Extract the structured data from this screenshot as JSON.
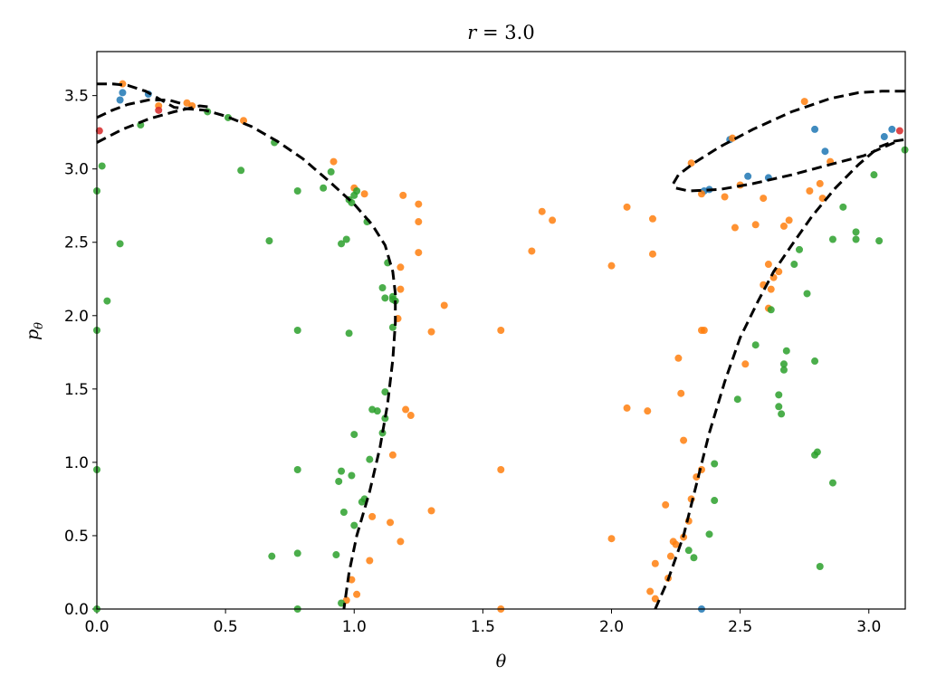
{
  "chart_data": {
    "type": "scatter",
    "title": "r = 3.0",
    "title_var": "r",
    "title_rest": " = 3.0",
    "xlabel": "θ",
    "ylabel": "p",
    "ylabel_sub": "θ",
    "xlim": [
      0,
      3.1416
    ],
    "ylim": [
      0,
      3.8
    ],
    "x_ticks": [
      0.0,
      0.5,
      1.0,
      1.5,
      2.0,
      2.5,
      3.0
    ],
    "x_tick_labels": [
      "0.0",
      "0.5",
      "1.0",
      "1.5",
      "2.0",
      "2.5",
      "3.0"
    ],
    "y_ticks": [
      0.0,
      0.5,
      1.0,
      1.5,
      2.0,
      2.5,
      3.0,
      3.5
    ],
    "y_tick_labels": [
      "0.0",
      "0.5",
      "1.0",
      "1.5",
      "2.0",
      "2.5",
      "3.0",
      "3.5"
    ],
    "grid": false,
    "series": [
      {
        "color": "#1f77b4",
        "points": [
          [
            0.09,
            3.47
          ],
          [
            0.1,
            3.52
          ],
          [
            0.2,
            3.51
          ],
          [
            2.36,
            2.85
          ],
          [
            2.38,
            2.86
          ],
          [
            2.46,
            3.2
          ],
          [
            2.53,
            2.95
          ],
          [
            2.61,
            2.94
          ],
          [
            2.79,
            3.27
          ],
          [
            2.83,
            3.12
          ],
          [
            3.06,
            3.22
          ],
          [
            3.09,
            3.27
          ],
          [
            2.35,
            0.0
          ]
        ]
      },
      {
        "color": "#ff7f0e",
        "points": [
          [
            0.1,
            3.58
          ],
          [
            0.24,
            3.43
          ],
          [
            0.35,
            3.45
          ],
          [
            0.37,
            3.43
          ],
          [
            0.57,
            3.33
          ],
          [
            0.92,
            3.05
          ],
          [
            1.0,
            2.87
          ],
          [
            1.04,
            2.83
          ],
          [
            1.19,
            2.82
          ],
          [
            1.25,
            2.76
          ],
          [
            1.25,
            2.64
          ],
          [
            1.25,
            2.43
          ],
          [
            1.18,
            2.33
          ],
          [
            1.18,
            2.18
          ],
          [
            1.17,
            1.98
          ],
          [
            1.35,
            2.07
          ],
          [
            1.3,
            1.89
          ],
          [
            1.2,
            1.36
          ],
          [
            1.22,
            1.32
          ],
          [
            1.15,
            1.05
          ],
          [
            1.14,
            0.59
          ],
          [
            1.18,
            0.46
          ],
          [
            1.3,
            0.67
          ],
          [
            1.07,
            0.63
          ],
          [
            1.06,
            0.33
          ],
          [
            0.99,
            0.2
          ],
          [
            1.01,
            0.1
          ],
          [
            0.97,
            0.06
          ],
          [
            1.57,
            1.9
          ],
          [
            1.57,
            0.95
          ],
          [
            1.57,
            0.0
          ],
          [
            1.69,
            2.44
          ],
          [
            1.73,
            2.71
          ],
          [
            1.77,
            2.65
          ],
          [
            2.0,
            2.34
          ],
          [
            2.0,
            0.48
          ],
          [
            2.06,
            2.74
          ],
          [
            2.06,
            1.37
          ],
          [
            2.16,
            2.66
          ],
          [
            2.16,
            2.42
          ],
          [
            2.14,
            1.35
          ],
          [
            2.15,
            0.12
          ],
          [
            2.17,
            0.31
          ],
          [
            2.17,
            0.07
          ],
          [
            2.21,
            0.71
          ],
          [
            2.22,
            0.21
          ],
          [
            2.23,
            0.36
          ],
          [
            2.24,
            0.46
          ],
          [
            2.25,
            0.44
          ],
          [
            2.26,
            1.71
          ],
          [
            2.27,
            1.47
          ],
          [
            2.28,
            1.15
          ],
          [
            2.28,
            0.49
          ],
          [
            2.3,
            0.6
          ],
          [
            2.31,
            0.75
          ],
          [
            2.31,
            3.04
          ],
          [
            2.35,
            2.83
          ],
          [
            2.35,
            1.9
          ],
          [
            2.36,
            1.9
          ],
          [
            2.35,
            0.95
          ],
          [
            2.33,
            0.9
          ],
          [
            2.44,
            2.81
          ],
          [
            2.47,
            3.21
          ],
          [
            2.48,
            2.6
          ],
          [
            2.5,
            2.89
          ],
          [
            2.52,
            1.67
          ],
          [
            2.56,
            2.62
          ],
          [
            2.59,
            2.21
          ],
          [
            2.61,
            2.35
          ],
          [
            2.62,
            2.18
          ],
          [
            2.63,
            2.26
          ],
          [
            2.61,
            2.05
          ],
          [
            2.65,
            2.3
          ],
          [
            2.67,
            2.61
          ],
          [
            2.69,
            2.65
          ],
          [
            2.75,
            3.46
          ],
          [
            2.77,
            2.85
          ],
          [
            2.81,
            2.9
          ],
          [
            2.82,
            2.8
          ],
          [
            2.85,
            3.05
          ],
          [
            2.59,
            2.8
          ]
        ]
      },
      {
        "color": "#2ca02c",
        "points": [
          [
            0.0,
            2.85
          ],
          [
            0.02,
            3.02
          ],
          [
            0.0,
            1.9
          ],
          [
            0.04,
            2.1
          ],
          [
            0.0,
            0.95
          ],
          [
            0.0,
            0.0
          ],
          [
            0.09,
            2.49
          ],
          [
            0.17,
            3.3
          ],
          [
            0.43,
            3.39
          ],
          [
            0.51,
            3.35
          ],
          [
            0.56,
            2.99
          ],
          [
            0.69,
            3.18
          ],
          [
            0.67,
            2.51
          ],
          [
            0.68,
            0.36
          ],
          [
            0.78,
            2.85
          ],
          [
            0.78,
            1.9
          ],
          [
            0.78,
            0.95
          ],
          [
            0.78,
            0.38
          ],
          [
            0.78,
            0.0
          ],
          [
            0.88,
            2.87
          ],
          [
            0.91,
            2.98
          ],
          [
            0.95,
            2.49
          ],
          [
            0.97,
            2.52
          ],
          [
            0.98,
            2.79
          ],
          [
            0.99,
            2.77
          ],
          [
            1.0,
            2.82
          ],
          [
            1.01,
            2.85
          ],
          [
            1.05,
            2.64
          ],
          [
            1.11,
            2.19
          ],
          [
            1.12,
            2.12
          ],
          [
            1.13,
            2.36
          ],
          [
            1.15,
            2.13
          ],
          [
            1.15,
            2.11
          ],
          [
            1.16,
            2.1
          ],
          [
            1.15,
            1.92
          ],
          [
            0.98,
            1.88
          ],
          [
            1.12,
            1.48
          ],
          [
            1.07,
            1.36
          ],
          [
            1.09,
            1.35
          ],
          [
            1.12,
            1.3
          ],
          [
            1.11,
            1.2
          ],
          [
            1.0,
            1.19
          ],
          [
            1.06,
            1.02
          ],
          [
            0.99,
            0.91
          ],
          [
            0.95,
            0.94
          ],
          [
            0.94,
            0.87
          ],
          [
            1.04,
            0.75
          ],
          [
            1.03,
            0.73
          ],
          [
            1.0,
            0.57
          ],
          [
            0.96,
            0.66
          ],
          [
            0.93,
            0.37
          ],
          [
            0.95,
            0.04
          ],
          [
            2.3,
            0.4
          ],
          [
            2.32,
            0.35
          ],
          [
            2.38,
            0.51
          ],
          [
            2.4,
            0.74
          ],
          [
            2.4,
            0.99
          ],
          [
            2.49,
            1.43
          ],
          [
            2.56,
            1.8
          ],
          [
            2.62,
            2.04
          ],
          [
            2.65,
            1.46
          ],
          [
            2.65,
            1.38
          ],
          [
            2.66,
            1.33
          ],
          [
            2.67,
            1.63
          ],
          [
            2.67,
            1.67
          ],
          [
            2.68,
            1.76
          ],
          [
            2.71,
            2.35
          ],
          [
            2.73,
            2.45
          ],
          [
            2.76,
            2.15
          ],
          [
            2.79,
            1.69
          ],
          [
            2.79,
            1.05
          ],
          [
            2.8,
            1.07
          ],
          [
            2.81,
            0.29
          ],
          [
            2.86,
            2.52
          ],
          [
            2.86,
            0.86
          ],
          [
            2.9,
            2.74
          ],
          [
            2.95,
            2.57
          ],
          [
            2.95,
            2.52
          ],
          [
            3.02,
            2.96
          ],
          [
            3.04,
            2.51
          ],
          [
            3.14,
            3.13
          ]
        ]
      },
      {
        "color": "#d62728",
        "points": [
          [
            0.01,
            3.26
          ],
          [
            0.24,
            3.4
          ],
          [
            3.12,
            3.26
          ]
        ]
      }
    ],
    "curves": [
      {
        "name": "",
        "style": "dashed",
        "color": "#000000",
        "segments": [
          [
            [
              0.0,
              3.58
            ],
            [
              0.06,
              3.58
            ],
            [
              0.12,
              3.57
            ],
            [
              0.19,
              3.53
            ],
            [
              0.24,
              3.48
            ],
            [
              0.3,
              3.42
            ],
            [
              0.35,
              3.41
            ],
            [
              0.42,
              3.4
            ],
            [
              0.5,
              3.36
            ],
            [
              0.6,
              3.29
            ],
            [
              0.7,
              3.19
            ],
            [
              0.8,
              3.07
            ],
            [
              0.9,
              2.92
            ],
            [
              1.0,
              2.76
            ],
            [
              1.07,
              2.62
            ],
            [
              1.12,
              2.48
            ],
            [
              1.15,
              2.3
            ],
            [
              1.16,
              2.15
            ],
            [
              1.16,
              1.95
            ],
            [
              1.15,
              1.7
            ],
            [
              1.13,
              1.4
            ],
            [
              1.1,
              1.1
            ],
            [
              1.06,
              0.8
            ],
            [
              1.01,
              0.5
            ],
            [
              0.98,
              0.25
            ],
            [
              0.96,
              0.0
            ]
          ],
          [
            [
              0.0,
              3.18
            ],
            [
              0.1,
              3.27
            ],
            [
              0.2,
              3.34
            ],
            [
              0.3,
              3.39
            ],
            [
              0.4,
              3.43
            ],
            [
              0.45,
              3.42
            ]
          ],
          [
            [
              0.0,
              3.35
            ],
            [
              0.06,
              3.4
            ],
            [
              0.12,
              3.44
            ],
            [
              0.2,
              3.47
            ],
            [
              0.28,
              3.47
            ],
            [
              0.34,
              3.44
            ]
          ],
          [
            [
              2.17,
              0.0
            ],
            [
              2.22,
              0.2
            ],
            [
              2.28,
              0.5
            ],
            [
              2.33,
              0.85
            ],
            [
              2.38,
              1.2
            ],
            [
              2.44,
              1.55
            ],
            [
              2.5,
              1.85
            ],
            [
              2.57,
              2.1
            ],
            [
              2.63,
              2.3
            ],
            [
              2.7,
              2.48
            ],
            [
              2.78,
              2.68
            ],
            [
              2.87,
              2.87
            ],
            [
              2.96,
              3.03
            ],
            [
              3.04,
              3.15
            ],
            [
              3.1,
              3.19
            ],
            [
              3.14,
              3.2
            ]
          ],
          [
            [
              3.14,
              3.53
            ],
            [
              3.05,
              3.53
            ],
            [
              2.96,
              3.52
            ],
            [
              2.85,
              3.48
            ],
            [
              2.7,
              3.39
            ],
            [
              2.55,
              3.27
            ],
            [
              2.42,
              3.15
            ],
            [
              2.32,
              3.04
            ],
            [
              2.26,
              2.96
            ],
            [
              2.24,
              2.9
            ],
            [
              2.25,
              2.87
            ],
            [
              2.3,
              2.85
            ],
            [
              2.42,
              2.86
            ],
            [
              2.55,
              2.9
            ],
            [
              2.7,
              2.96
            ],
            [
              2.85,
              3.03
            ],
            [
              2.98,
              3.09
            ],
            [
              3.06,
              3.15
            ],
            [
              3.1,
              3.18
            ]
          ]
        ]
      }
    ]
  }
}
